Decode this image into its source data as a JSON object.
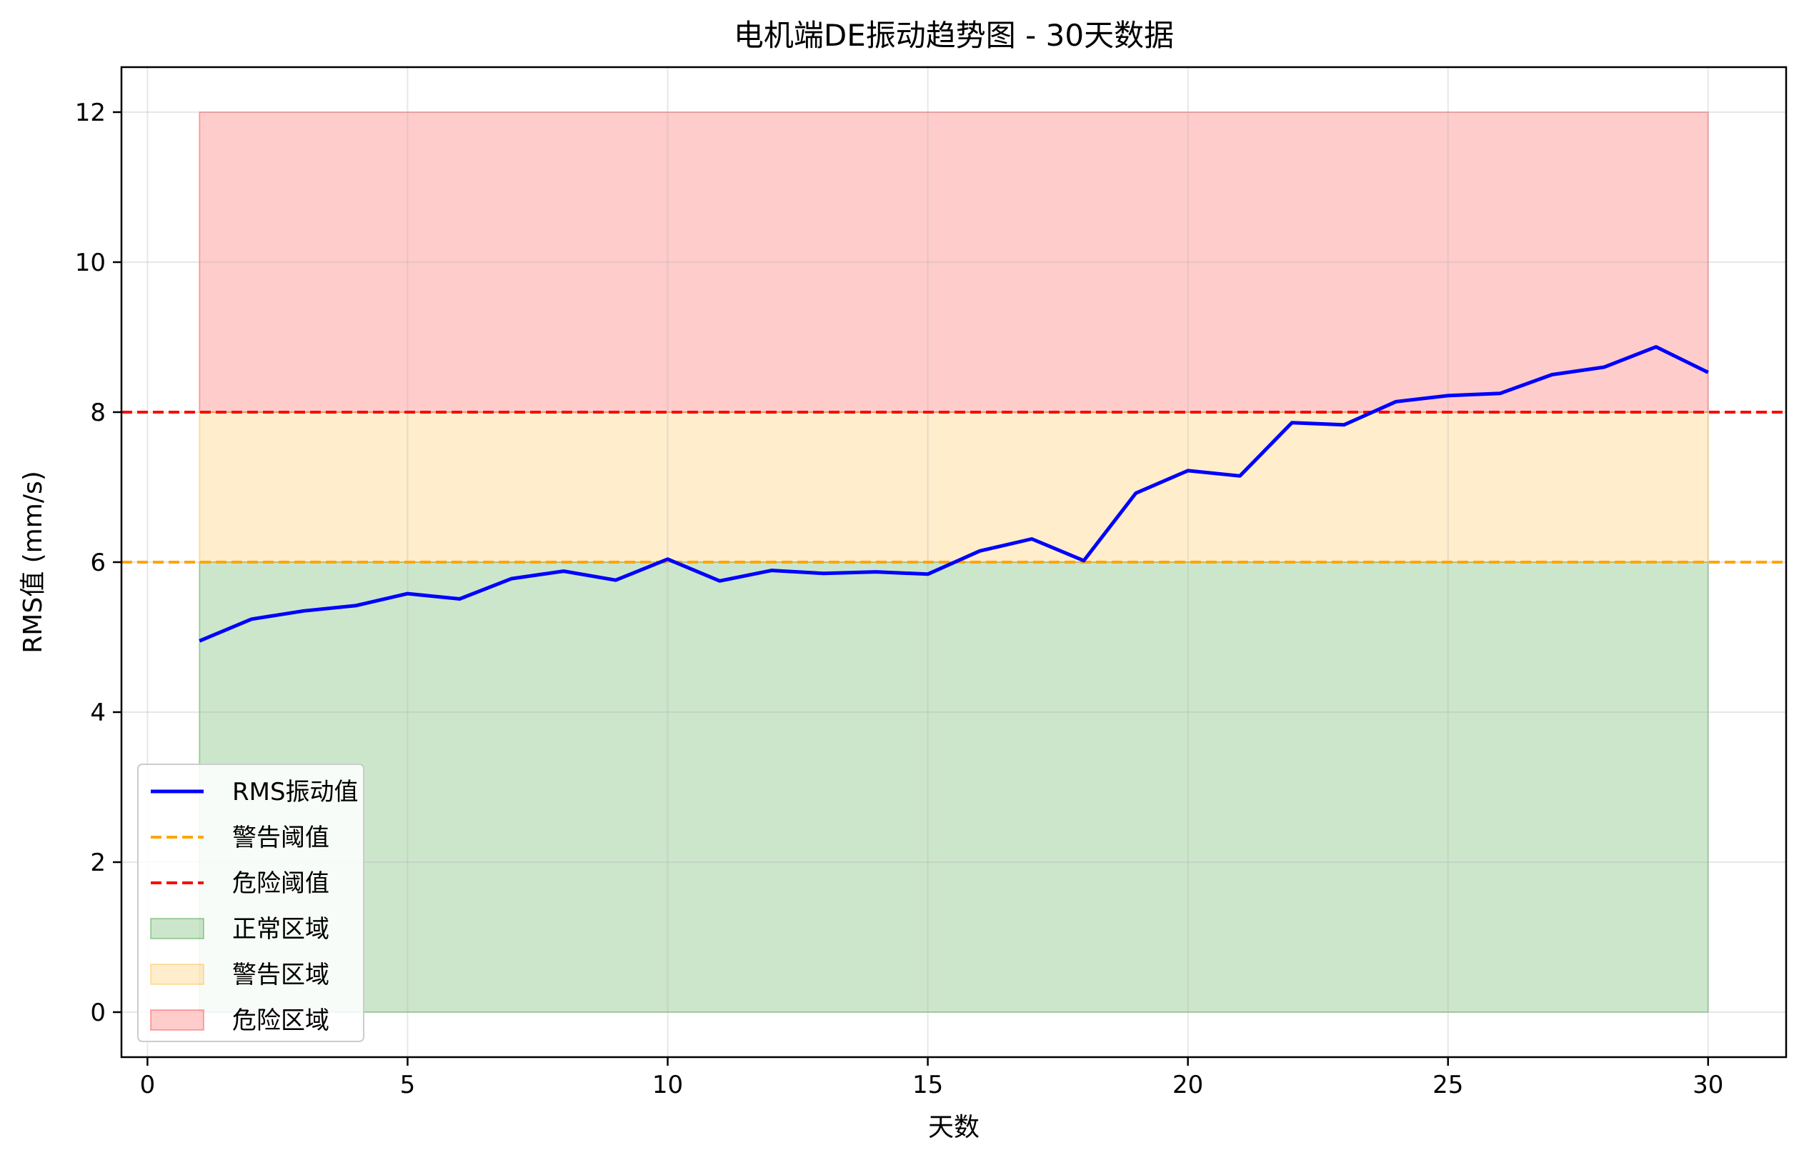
{
  "chart_data": {
    "type": "line",
    "title": "电机端DE振动趋势图 - 30天数据",
    "xlabel": "天数",
    "ylabel": "RMS值 (mm/s)",
    "xlim": [
      -0.5,
      31.5
    ],
    "ylim": [
      -0.6,
      12.6
    ],
    "xticks": [
      0,
      5,
      10,
      15,
      20,
      25,
      30
    ],
    "yticks": [
      0,
      2,
      4,
      6,
      8,
      10,
      12
    ],
    "grid": true,
    "legend_position": "lower-left",
    "series": [
      {
        "name": "RMS振动值",
        "color": "#0000ff",
        "style": "solid",
        "x": [
          1,
          2,
          3,
          4,
          5,
          6,
          7,
          8,
          9,
          10,
          11,
          12,
          13,
          14,
          15,
          16,
          17,
          18,
          19,
          20,
          21,
          22,
          23,
          24,
          25,
          26,
          27,
          28,
          29,
          30
        ],
        "y": [
          4.95,
          5.24,
          5.35,
          5.42,
          5.58,
          5.51,
          5.78,
          5.88,
          5.76,
          6.04,
          5.75,
          5.89,
          5.85,
          5.87,
          5.84,
          6.15,
          6.31,
          6.02,
          6.92,
          7.22,
          7.15,
          7.86,
          7.83,
          8.14,
          8.22,
          8.25,
          8.5,
          8.6,
          8.87,
          8.53
        ]
      }
    ],
    "thresholds": [
      {
        "name": "警告阈值",
        "value": 6,
        "color": "#ffa500",
        "style": "dashed"
      },
      {
        "name": "危险阈值",
        "value": 8,
        "color": "#ff0000",
        "style": "dashed"
      }
    ],
    "zones": [
      {
        "name": "正常区域",
        "x_range": [
          1,
          30
        ],
        "y_range": [
          0,
          6
        ],
        "color": "#008000",
        "alpha": 0.2
      },
      {
        "name": "警告区域",
        "x_range": [
          1,
          30
        ],
        "y_range": [
          6,
          8
        ],
        "color": "#ffa500",
        "alpha": 0.2
      },
      {
        "name": "危险区域",
        "x_range": [
          1,
          30
        ],
        "y_range": [
          8,
          12
        ],
        "color": "#ff0000",
        "alpha": 0.2
      }
    ],
    "legend": [
      "RMS振动值",
      "警告阈值",
      "危险阈值",
      "正常区域",
      "警告区域",
      "危险区域"
    ]
  }
}
